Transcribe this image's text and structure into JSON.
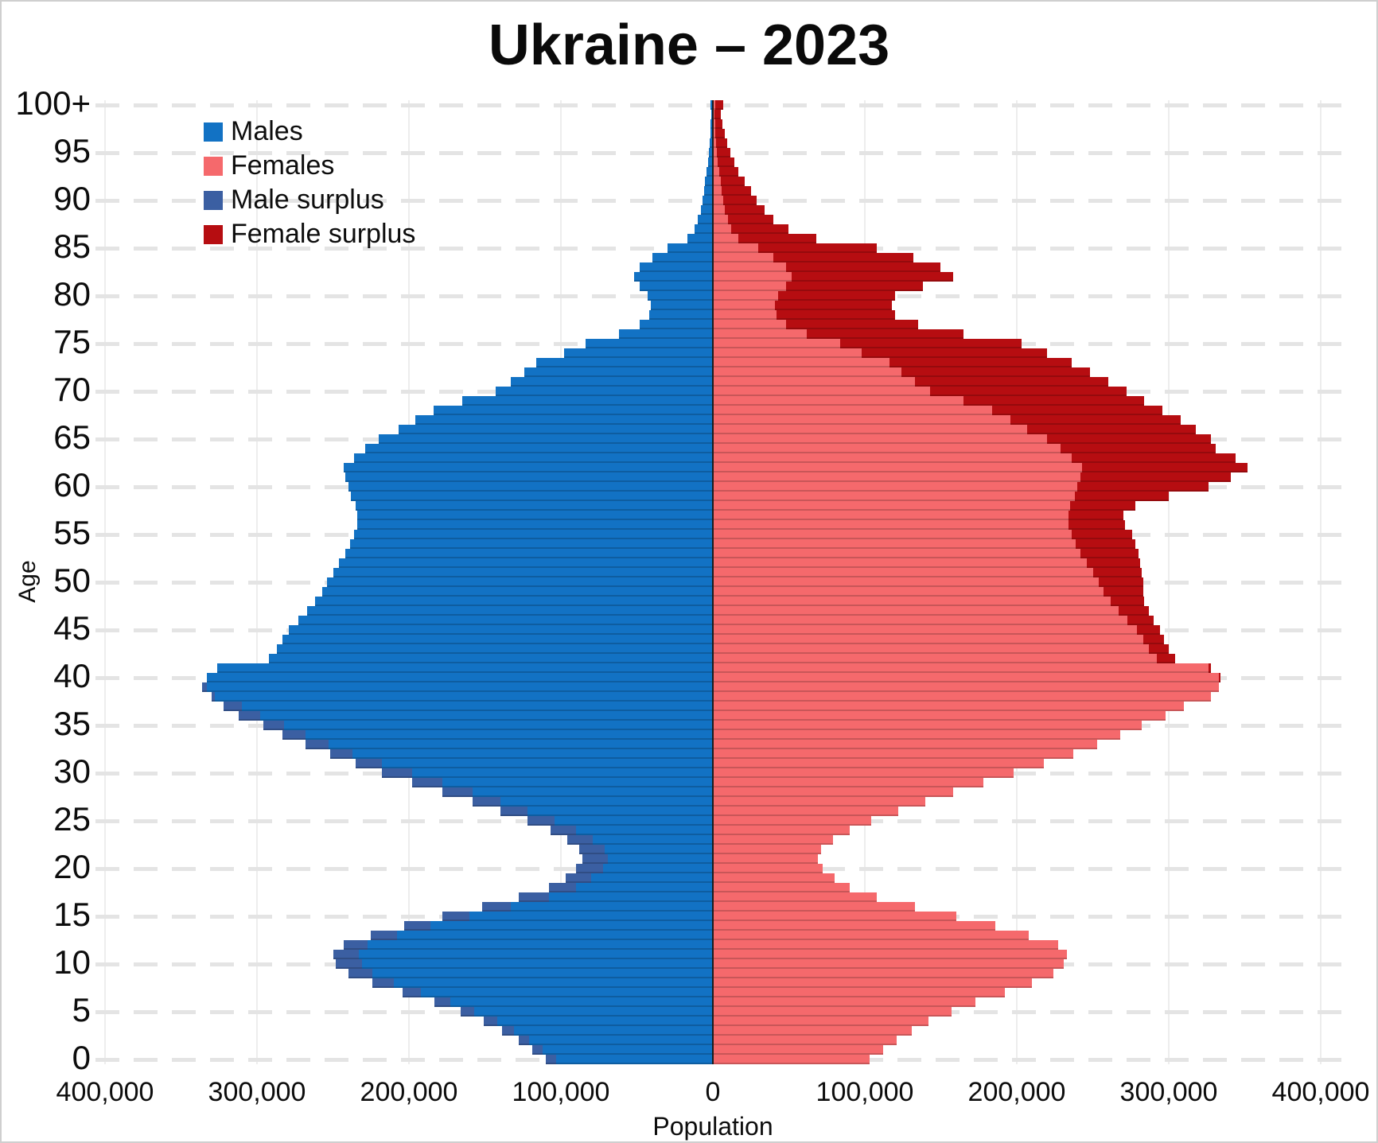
{
  "title": "Ukraine – 2023",
  "colors": {
    "male": "#1272c4",
    "female": "#f5696c",
    "male_surplus": "#3b5fa2",
    "female_surplus": "#b60d11",
    "center_axis": "#1c1c1c",
    "grid": "#ededed"
  },
  "legend": [
    {
      "label": "Males",
      "color_key": "male"
    },
    {
      "label": "Females",
      "color_key": "female"
    },
    {
      "label": "Male surplus",
      "color_key": "male_surplus"
    },
    {
      "label": "Female surplus",
      "color_key": "female_surplus"
    }
  ],
  "axes": {
    "y_label": "Age",
    "x_label": "Population",
    "y_ticks": [
      "100+",
      "95",
      "90",
      "85",
      "80",
      "75",
      "70",
      "65",
      "60",
      "55",
      "50",
      "45",
      "40",
      "35",
      "30",
      "25",
      "20",
      "15",
      "10",
      "5",
      "0"
    ],
    "x_ticks": [
      "400,000",
      "300,000",
      "200,000",
      "100,000",
      "0",
      "100,000",
      "200,000",
      "300,000",
      "400,000"
    ]
  },
  "chart_data": {
    "type": "bar",
    "subtype": "population-pyramid",
    "title": "Ukraine – 2023",
    "xlabel": "Population",
    "ylabel": "Age",
    "age_min": 0,
    "age_max": 100,
    "x_max_each_side": 400000,
    "grid": {
      "vertical_every": 100000,
      "horizontal_dashed_every_years": 5
    },
    "legend_position": "top-left-inside",
    "series": [
      {
        "name": "Males",
        "side": "left",
        "values": [
          110000,
          119000,
          128000,
          139000,
          151000,
          166000,
          183000,
          204000,
          224000,
          240000,
          248000,
          250000,
          243000,
          225000,
          203000,
          178000,
          152000,
          128000,
          108000,
          97000,
          90000,
          86000,
          88000,
          96000,
          107000,
          122000,
          140000,
          158000,
          178000,
          198000,
          218000,
          235000,
          252000,
          268000,
          283000,
          296000,
          312000,
          322000,
          330000,
          336000,
          333000,
          326000,
          292000,
          287000,
          283000,
          279000,
          273000,
          267000,
          262000,
          257000,
          254000,
          250000,
          246000,
          242000,
          239000,
          236000,
          234000,
          234000,
          235000,
          238000,
          240000,
          242000,
          243000,
          236000,
          229000,
          220000,
          207000,
          196000,
          184000,
          165000,
          143000,
          133000,
          124000,
          116000,
          98000,
          84000,
          62000,
          48000,
          42000,
          41000,
          43000,
          48000,
          52000,
          48000,
          40000,
          30000,
          17000,
          12000,
          10000,
          8000,
          7000,
          6000,
          5000,
          4000,
          3300,
          2700,
          2200,
          1800,
          1400,
          1100,
          1400
        ]
      },
      {
        "name": "Females",
        "side": "right",
        "values": [
          103000,
          112000,
          121000,
          131000,
          142000,
          157000,
          173000,
          192000,
          210000,
          224000,
          231000,
          233000,
          227000,
          208000,
          186000,
          160000,
          133000,
          108000,
          90000,
          80000,
          72000,
          69000,
          71000,
          79000,
          90000,
          104000,
          122000,
          140000,
          158000,
          178000,
          198000,
          218000,
          237000,
          253000,
          268000,
          282000,
          298000,
          310000,
          328000,
          333000,
          334000,
          328000,
          304000,
          300000,
          297000,
          294000,
          290000,
          287000,
          284000,
          283000,
          283000,
          282000,
          281000,
          280000,
          278000,
          276000,
          271000,
          270000,
          278000,
          300000,
          326000,
          341000,
          352000,
          344000,
          331000,
          328000,
          318000,
          308000,
          296000,
          284000,
          272000,
          260000,
          248000,
          236000,
          220000,
          203000,
          165000,
          135000,
          120000,
          118000,
          120000,
          138000,
          158000,
          150000,
          132000,
          108000,
          68000,
          50000,
          40000,
          34000,
          29000,
          25000,
          21000,
          17000,
          14000,
          11500,
          9500,
          8000,
          6500,
          5500,
          7000
        ]
      },
      {
        "name": "Male surplus",
        "derived": "max(males - females, 0), drawn as dark tip on left bars"
      },
      {
        "name": "Female surplus",
        "derived": "max(females - males, 0), drawn as dark tip on right bars"
      }
    ]
  }
}
